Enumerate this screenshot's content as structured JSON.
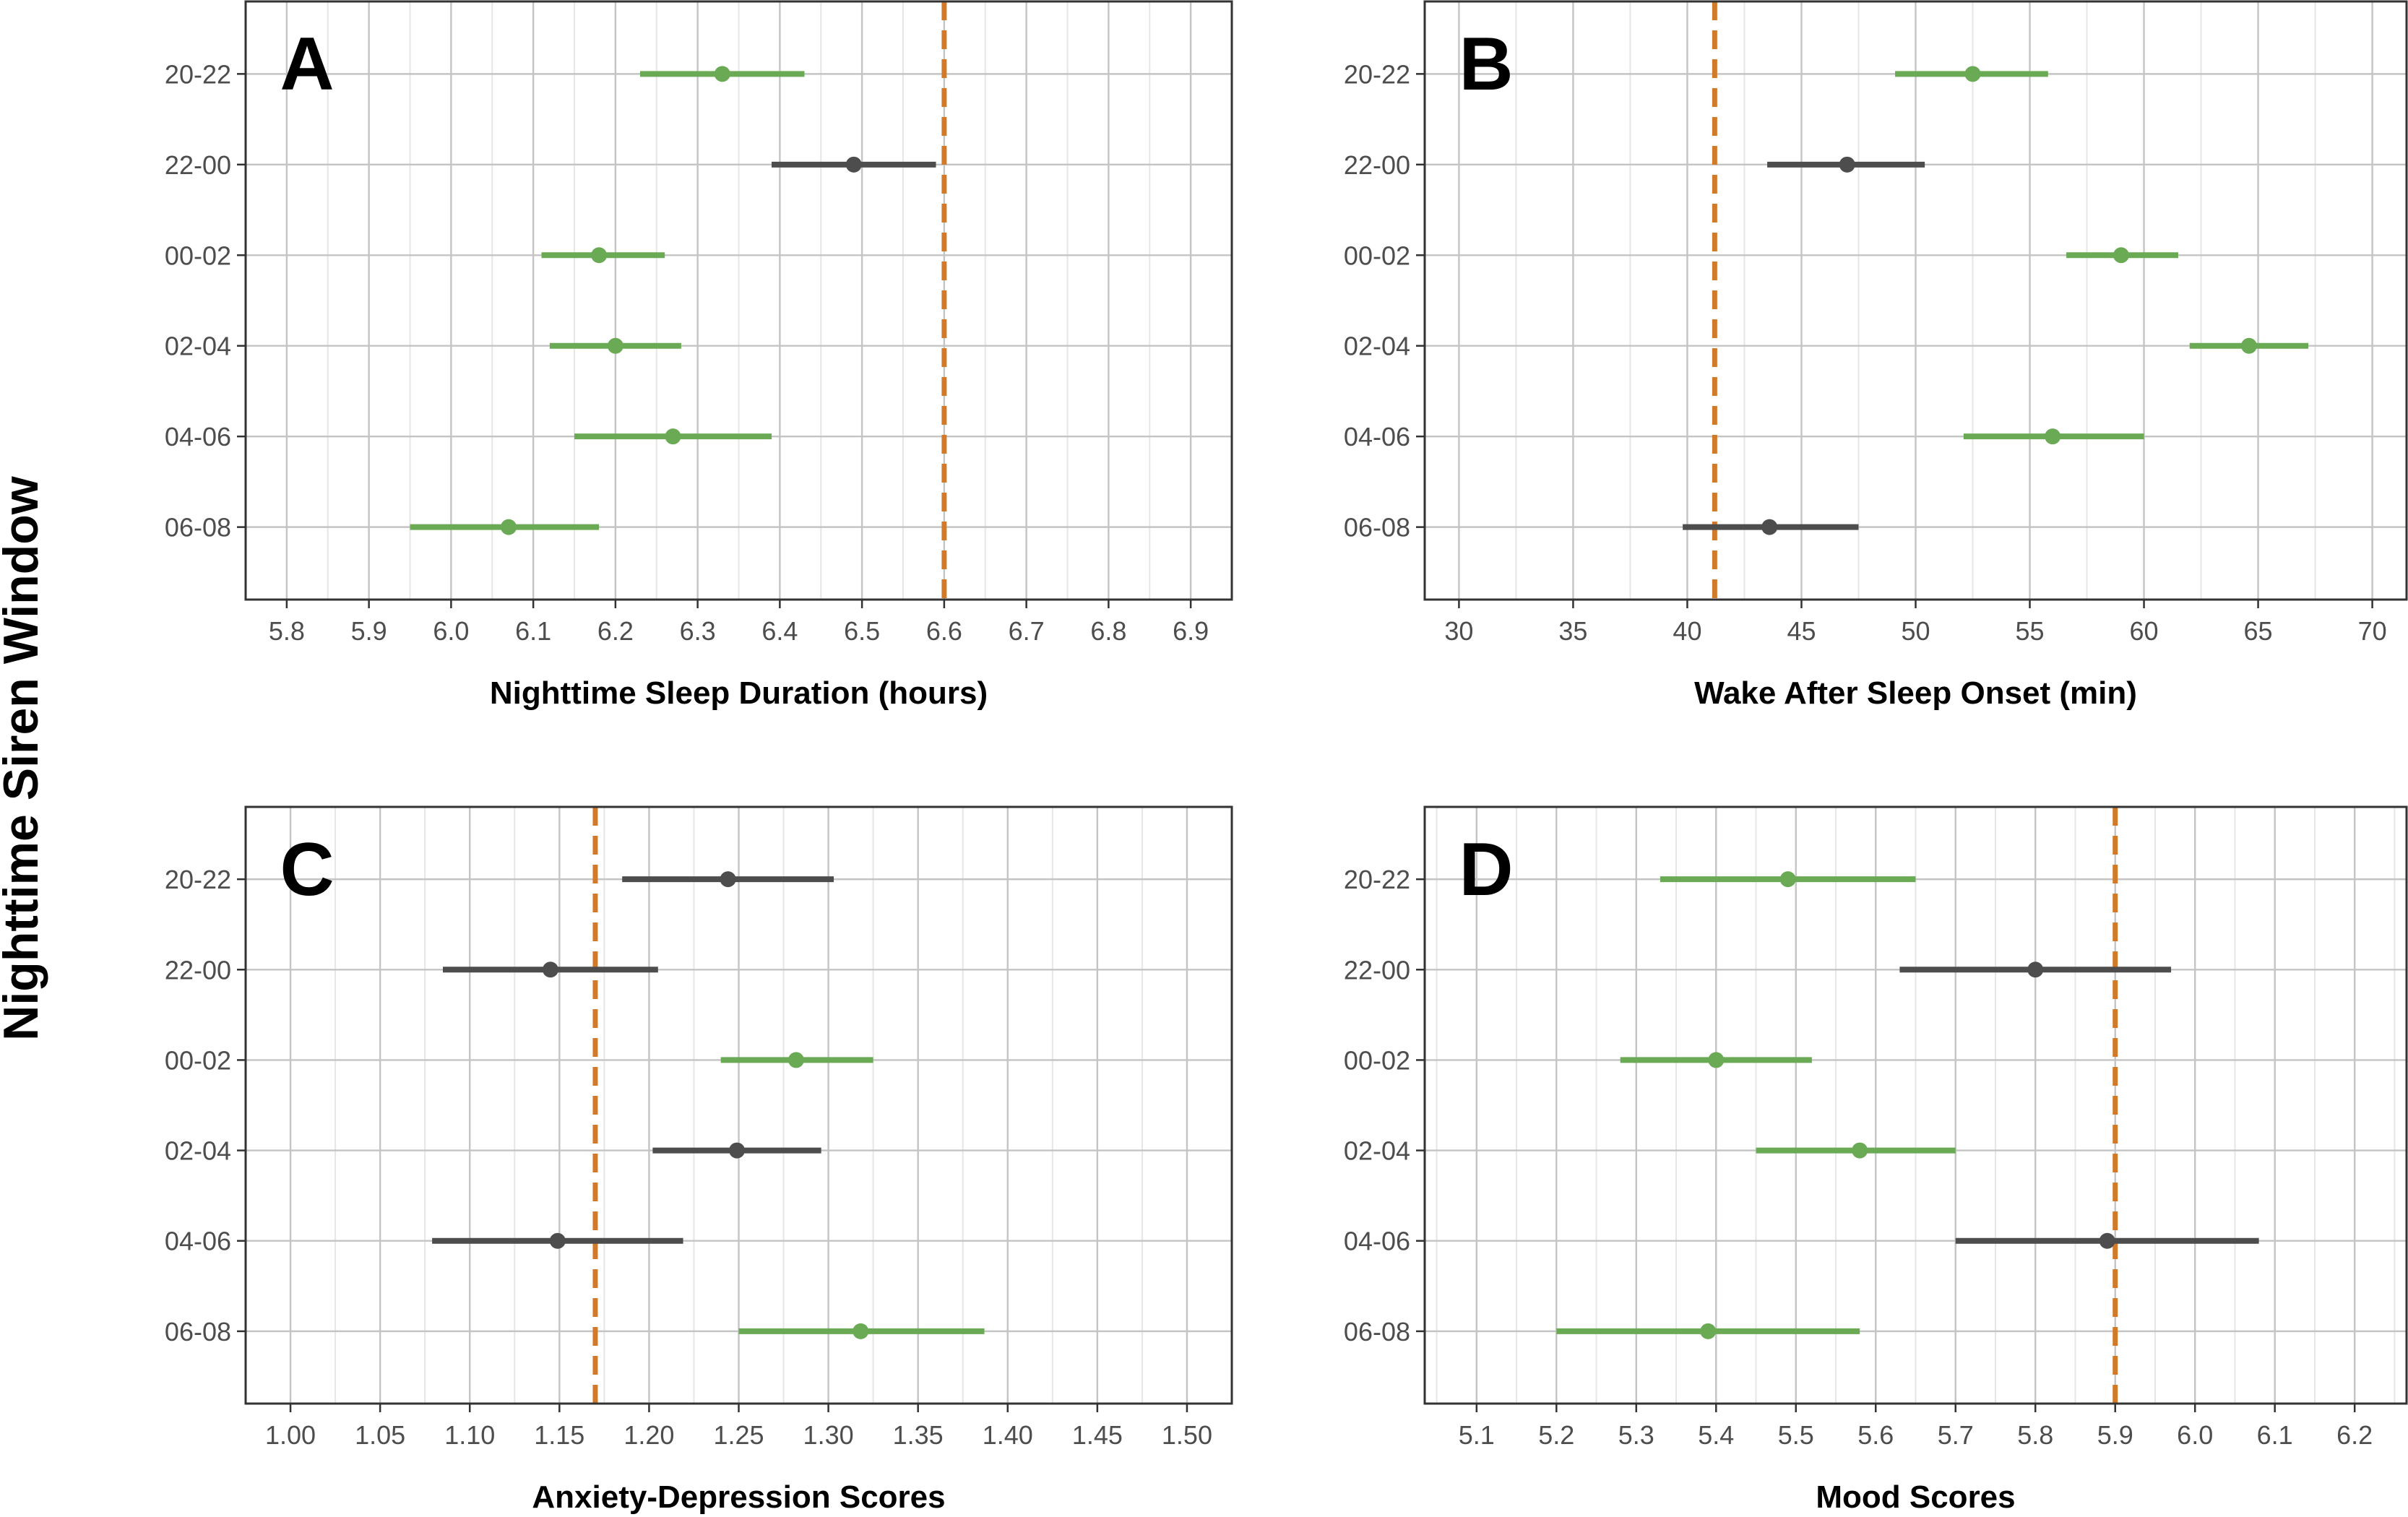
{
  "figure": {
    "ylabel": "Nighttime Siren Window",
    "categories": [
      "20-22",
      "22-00",
      "00-02",
      "02-04",
      "04-06",
      "06-08"
    ],
    "colors": {
      "significant": "#6aaa55",
      "nonsignificant": "#4d4d4d",
      "reference": "#d07a2a",
      "grid_major": "#c4c4c4",
      "grid_minor": "#e6e6e6"
    }
  },
  "chart_data": [
    {
      "type": "scatter",
      "panel": "A",
      "xlabel": "Nighttime Sleep Duration (hours)",
      "xlim": [
        5.75,
        6.95
      ],
      "ticks": [
        "5.8",
        "5.9",
        "6.0",
        "6.1",
        "6.2",
        "6.3",
        "6.4",
        "6.5",
        "6.6",
        "6.7",
        "6.8",
        "6.9"
      ],
      "reference": 6.6,
      "series": [
        {
          "category": "20-22",
          "estimate": 6.33,
          "lower": 6.23,
          "upper": 6.43,
          "color": "significant"
        },
        {
          "category": "22-00",
          "estimate": 6.49,
          "lower": 6.39,
          "upper": 6.59,
          "color": "nonsignificant"
        },
        {
          "category": "00-02",
          "estimate": 6.18,
          "lower": 6.11,
          "upper": 6.26,
          "color": "significant"
        },
        {
          "category": "02-04",
          "estimate": 6.2,
          "lower": 6.12,
          "upper": 6.28,
          "color": "significant"
        },
        {
          "category": "04-06",
          "estimate": 6.27,
          "lower": 6.15,
          "upper": 6.39,
          "color": "significant"
        },
        {
          "category": "06-08",
          "estimate": 6.07,
          "lower": 5.95,
          "upper": 6.18,
          "color": "significant"
        }
      ]
    },
    {
      "type": "scatter",
      "panel": "B",
      "xlabel": "Wake After Sleep Onset (min)",
      "xlim": [
        28.5,
        71.5
      ],
      "ticks": [
        "30",
        "35",
        "40",
        "45",
        "50",
        "55",
        "60",
        "65",
        "70"
      ],
      "reference": 41.2,
      "series": [
        {
          "category": "20-22",
          "estimate": 52.5,
          "lower": 49.1,
          "upper": 55.8,
          "color": "significant"
        },
        {
          "category": "22-00",
          "estimate": 47.0,
          "lower": 43.5,
          "upper": 50.4,
          "color": "nonsignificant"
        },
        {
          "category": "00-02",
          "estimate": 59.0,
          "lower": 56.6,
          "upper": 61.5,
          "color": "significant"
        },
        {
          "category": "02-04",
          "estimate": 64.6,
          "lower": 62.0,
          "upper": 67.2,
          "color": "significant"
        },
        {
          "category": "04-06",
          "estimate": 56.0,
          "lower": 52.1,
          "upper": 60.0,
          "color": "significant"
        },
        {
          "category": "06-08",
          "estimate": 43.6,
          "lower": 39.8,
          "upper": 47.5,
          "color": "nonsignificant"
        }
      ]
    },
    {
      "type": "scatter",
      "panel": "C",
      "xlabel": "Anxiety-Depression Scores",
      "xlim": [
        0.975,
        1.525
      ],
      "ticks": [
        "1.00",
        "1.05",
        "1.10",
        "1.15",
        "1.20",
        "1.25",
        "1.30",
        "1.35",
        "1.40",
        "1.45",
        "1.50"
      ],
      "reference": 1.17,
      "series": [
        {
          "category": "20-22",
          "estimate": 1.244,
          "lower": 1.185,
          "upper": 1.303,
          "color": "nonsignificant"
        },
        {
          "category": "22-00",
          "estimate": 1.145,
          "lower": 1.085,
          "upper": 1.205,
          "color": "nonsignificant"
        },
        {
          "category": "00-02",
          "estimate": 1.282,
          "lower": 1.24,
          "upper": 1.325,
          "color": "significant"
        },
        {
          "category": "02-04",
          "estimate": 1.249,
          "lower": 1.202,
          "upper": 1.296,
          "color": "nonsignificant"
        },
        {
          "category": "04-06",
          "estimate": 1.149,
          "lower": 1.079,
          "upper": 1.219,
          "color": "nonsignificant"
        },
        {
          "category": "06-08",
          "estimate": 1.318,
          "lower": 1.25,
          "upper": 1.387,
          "color": "significant"
        }
      ]
    },
    {
      "type": "scatter",
      "panel": "D",
      "xlabel": "Mood Scores",
      "xlim": [
        5.035,
        6.265
      ],
      "ticks": [
        "5.1",
        "5.2",
        "5.3",
        "5.4",
        "5.5",
        "5.6",
        "5.7",
        "5.8",
        "5.9",
        "6.0",
        "6.1",
        "6.2"
      ],
      "reference": 5.9,
      "series": [
        {
          "category": "20-22",
          "estimate": 5.49,
          "lower": 5.33,
          "upper": 5.65,
          "color": "significant"
        },
        {
          "category": "22-00",
          "estimate": 5.8,
          "lower": 5.63,
          "upper": 5.97,
          "color": "nonsignificant"
        },
        {
          "category": "00-02",
          "estimate": 5.4,
          "lower": 5.28,
          "upper": 5.52,
          "color": "significant"
        },
        {
          "category": "02-04",
          "estimate": 5.58,
          "lower": 5.45,
          "upper": 5.7,
          "color": "significant"
        },
        {
          "category": "04-06",
          "estimate": 5.89,
          "lower": 5.7,
          "upper": 6.08,
          "color": "nonsignificant"
        },
        {
          "category": "06-08",
          "estimate": 5.39,
          "lower": 5.2,
          "upper": 5.58,
          "color": "significant"
        }
      ]
    }
  ]
}
